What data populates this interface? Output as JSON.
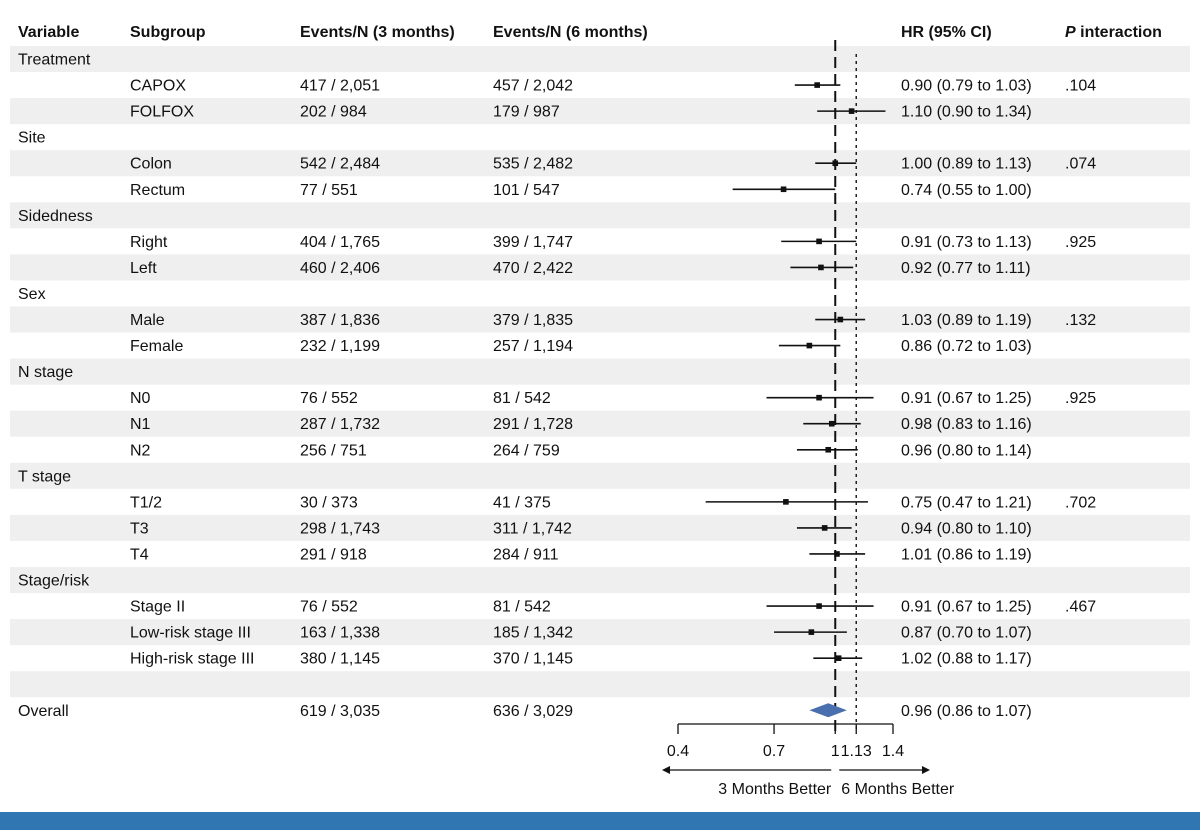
{
  "headers": {
    "variable": "Variable",
    "subgroup": "Subgroup",
    "events3": "Events/N (3 months)",
    "events6": "Events/N (6 months)",
    "hr": "HR (95% CI)",
    "p_italic": "P",
    "p_rest": " interaction"
  },
  "rows": [
    {
      "type": "group",
      "variable": "Treatment"
    },
    {
      "type": "data",
      "subgroup": "CAPOX",
      "e3": "417 / 2,051",
      "e6": "457 / 2,042",
      "hr": 0.9,
      "lo": 0.79,
      "hi": 1.03,
      "hr_text": "0.90 (0.79 to 1.03)",
      "p": ".104"
    },
    {
      "type": "data",
      "subgroup": "FOLFOX",
      "e3": "202 / 984",
      "e6": "179 / 987",
      "hr": 1.1,
      "lo": 0.9,
      "hi": 1.34,
      "hr_text": "1.10 (0.90 to 1.34)",
      "p": ""
    },
    {
      "type": "group",
      "variable": "Site"
    },
    {
      "type": "data",
      "subgroup": "Colon",
      "e3": "542 / 2,484",
      "e6": "535 / 2,482",
      "hr": 1.0,
      "lo": 0.89,
      "hi": 1.13,
      "hr_text": "1.00 (0.89 to 1.13)",
      "p": ".074"
    },
    {
      "type": "data",
      "subgroup": "Rectum",
      "e3": "77 / 551",
      "e6": "101 / 547",
      "hr": 0.74,
      "lo": 0.55,
      "hi": 1.0,
      "hr_text": "0.74 (0.55 to 1.00)",
      "p": ""
    },
    {
      "type": "group",
      "variable": "Sidedness"
    },
    {
      "type": "data",
      "subgroup": "Right",
      "e3": "404 / 1,765",
      "e6": "399 / 1,747",
      "hr": 0.91,
      "lo": 0.73,
      "hi": 1.13,
      "hr_text": "0.91 (0.73 to 1.13)",
      "p": ".925"
    },
    {
      "type": "data",
      "subgroup": "Left",
      "e3": "460 / 2,406",
      "e6": "470 / 2,422",
      "hr": 0.92,
      "lo": 0.77,
      "hi": 1.11,
      "hr_text": "0.92 (0.77 to 1.11)",
      "p": ""
    },
    {
      "type": "group",
      "variable": "Sex"
    },
    {
      "type": "data",
      "subgroup": "Male",
      "e3": "387 / 1,836",
      "e6": "379 / 1,835",
      "hr": 1.03,
      "lo": 0.89,
      "hi": 1.19,
      "hr_text": "1.03 (0.89 to 1.19)",
      "p": ".132"
    },
    {
      "type": "data",
      "subgroup": "Female",
      "e3": "232 / 1,199",
      "e6": "257 / 1,194",
      "hr": 0.86,
      "lo": 0.72,
      "hi": 1.03,
      "hr_text": "0.86 (0.72 to 1.03)",
      "p": ""
    },
    {
      "type": "group",
      "variable": "N stage"
    },
    {
      "type": "data",
      "subgroup": "N0",
      "e3": "76 / 552",
      "e6": "81 / 542",
      "hr": 0.91,
      "lo": 0.67,
      "hi": 1.25,
      "hr_text": "0.91 (0.67 to 1.25)",
      "p": ".925"
    },
    {
      "type": "data",
      "subgroup": "N1",
      "e3": "287 / 1,732",
      "e6": "291 / 1,728",
      "hr": 0.98,
      "lo": 0.83,
      "hi": 1.16,
      "hr_text": "0.98 (0.83 to 1.16)",
      "p": ""
    },
    {
      "type": "data",
      "subgroup": "N2",
      "e3": "256 / 751",
      "e6": "264 / 759",
      "hr": 0.96,
      "lo": 0.8,
      "hi": 1.14,
      "hr_text": "0.96 (0.80 to 1.14)",
      "p": ""
    },
    {
      "type": "group",
      "variable": "T stage"
    },
    {
      "type": "data",
      "subgroup": "T1/2",
      "e3": "30 / 373",
      "e6": "41 / 375",
      "hr": 0.75,
      "lo": 0.47,
      "hi": 1.21,
      "hr_text": "0.75 (0.47 to 1.21)",
      "p": ".702"
    },
    {
      "type": "data",
      "subgroup": "T3",
      "e3": "298 / 1,743",
      "e6": "311 / 1,742",
      "hr": 0.94,
      "lo": 0.8,
      "hi": 1.1,
      "hr_text": "0.94 (0.80 to 1.10)",
      "p": ""
    },
    {
      "type": "data",
      "subgroup": "T4",
      "e3": "291 / 918",
      "e6": "284 / 911",
      "hr": 1.01,
      "lo": 0.86,
      "hi": 1.19,
      "hr_text": "1.01 (0.86 to 1.19)",
      "p": ""
    },
    {
      "type": "group",
      "variable": "Stage/risk"
    },
    {
      "type": "data",
      "subgroup": "Stage II",
      "e3": "76 / 552",
      "e6": "81 / 542",
      "hr": 0.91,
      "lo": 0.67,
      "hi": 1.25,
      "hr_text": "0.91 (0.67 to 1.25)",
      "p": ".467"
    },
    {
      "type": "data",
      "subgroup": "Low-risk stage III",
      "e3": "163 / 1,338",
      "e6": "185 / 1,342",
      "hr": 0.87,
      "lo": 0.7,
      "hi": 1.07,
      "hr_text": "0.87 (0.70 to 1.07)",
      "p": ""
    },
    {
      "type": "data",
      "subgroup": "High-risk stage III",
      "e3": "380 / 1,145",
      "e6": "370 / 1,145",
      "hr": 1.02,
      "lo": 0.88,
      "hi": 1.17,
      "hr_text": "1.02 (0.88 to 1.17)",
      "p": ""
    },
    {
      "type": "blank"
    },
    {
      "type": "overall",
      "variable": "Overall",
      "e3": "619 / 3,035",
      "e6": "636 / 3,029",
      "hr": 0.96,
      "lo": 0.86,
      "hi": 1.07,
      "hr_text": "0.96 (0.86 to 1.07)",
      "p": ""
    }
  ],
  "chart_data": {
    "type": "forest",
    "scale": "log",
    "xlim": [
      0.4,
      1.4
    ],
    "ticks": [
      0.4,
      0.7,
      1,
      1.13,
      1.4
    ],
    "tick_labels": [
      "0.4",
      "0.7",
      "1",
      "1.13",
      "1.4"
    ],
    "reference_line": 1,
    "margin_line": 1.13,
    "left_direction_label": "3 Months Better",
    "right_direction_label": "6 Months Better",
    "overall_color": "#4a6faf"
  },
  "footer_color": "#2f76b3"
}
